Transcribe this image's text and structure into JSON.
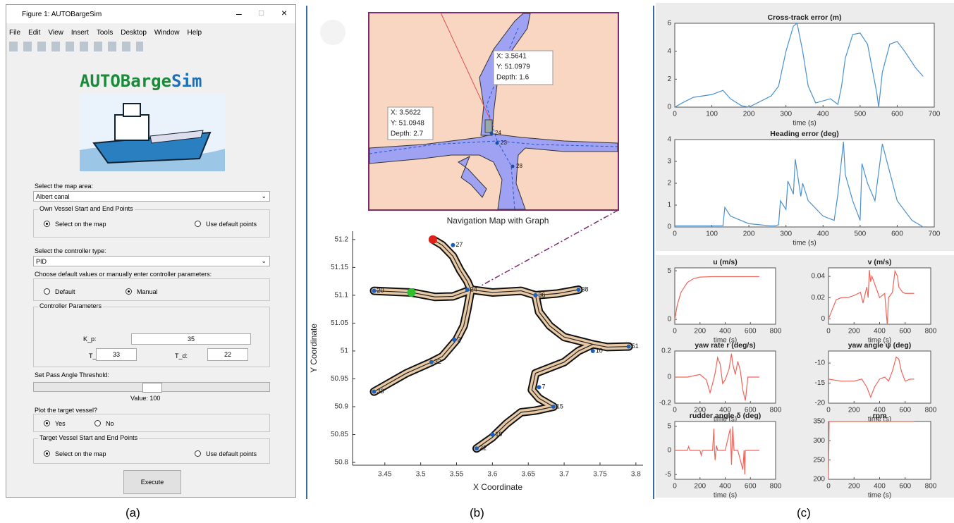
{
  "captions": [
    "(a)",
    "(b)",
    "(c)"
  ],
  "gui": {
    "window_title": "Figure 1: AUTOBargeSim",
    "menu": [
      "File",
      "Edit",
      "View",
      "Insert",
      "Tools",
      "Desktop",
      "Window",
      "Help"
    ],
    "logo_parts": [
      "AUTOBarge",
      "Sim"
    ],
    "map_area_label": "Select the map area:",
    "map_area_value": "Albert canal",
    "own_group": "Own Vessel Start and End Points",
    "own_options": [
      "Select on the map",
      "Use default points"
    ],
    "controller_label": "Select the controller type:",
    "controller_value": "PID",
    "param_mode_label": "Choose default values or manually enter controller parameters:",
    "param_mode_options": [
      "Default",
      "Manual"
    ],
    "params_group": "Controller Parameters",
    "kp_label": "K_p:",
    "kp_value": "35",
    "ti_label": "T_i:",
    "ti_value": "33",
    "td_label": "T_d:",
    "td_value": "22",
    "threshold_label": "Set Pass Angle Threshold:",
    "threshold_value": "Value: 100",
    "target_label": "Plot the target vessel?",
    "target_options": [
      "Yes",
      "No"
    ],
    "target_group": "Target Vessel Start and End Points",
    "target_points_options": [
      "Select on the map",
      "Use default points"
    ],
    "execute": "Execute"
  },
  "inset": {
    "tips": [
      {
        "lines": [
          "X: 3.5641",
          "Y: 51.0979",
          "Depth: 1.6"
        ]
      },
      {
        "lines": [
          "X: 3.5622",
          "Y: 51.0948",
          "Depth: 2.7"
        ]
      }
    ],
    "node_labels": [
      "24",
      "23",
      "28"
    ]
  },
  "map": {
    "type": "map",
    "title": "Navigation Map with Graph",
    "xlabel": "X Coordinate",
    "ylabel": "Y Coordinate",
    "xlim": [
      3.405,
      3.81
    ],
    "ylim": [
      50.795,
      51.215
    ],
    "xticks": [
      3.45,
      3.5,
      3.55,
      3.6,
      3.65,
      3.7,
      3.75,
      3.8
    ],
    "yticks": [
      50.8,
      50.85,
      50.9,
      50.95,
      51,
      51.05,
      51.1,
      51.15,
      51.2
    ],
    "rivers": [
      {
        "x": [
          3.517,
          3.53,
          3.545,
          3.555,
          3.565,
          3.57
        ],
        "y": [
          51.2,
          51.19,
          51.17,
          51.145,
          51.125,
          51.11
        ]
      },
      {
        "x": [
          3.435,
          3.487,
          3.52,
          3.545,
          3.57,
          3.6,
          3.64,
          3.66,
          3.69,
          3.72
        ],
        "y": [
          51.108,
          51.105,
          51.097,
          51.098,
          51.11,
          51.105,
          51.108,
          51.1,
          51.103,
          51.11
        ]
      },
      {
        "x": [
          3.66,
          3.665,
          3.68,
          3.7,
          3.74,
          3.76,
          3.79
        ],
        "y": [
          51.1,
          51.07,
          51.045,
          51.025,
          51.012,
          51.007,
          51.008
        ]
      },
      {
        "x": [
          3.74,
          3.72,
          3.7,
          3.66,
          3.655,
          3.665,
          3.685,
          3.66,
          3.64,
          3.62,
          3.6,
          3.578
        ],
        "y": [
          51.012,
          51.0,
          50.98,
          50.96,
          50.93,
          50.915,
          50.9,
          50.893,
          50.89,
          50.87,
          50.845,
          50.825
        ]
      },
      {
        "x": [
          3.57,
          3.565,
          3.56,
          3.55,
          3.53,
          3.515,
          3.48,
          3.435
        ],
        "y": [
          51.11,
          51.075,
          51.045,
          51.02,
          50.99,
          50.98,
          50.96,
          50.927
        ]
      }
    ],
    "nodes": [
      {
        "label": "20",
        "x": 3.435,
        "y": 51.108
      },
      {
        "label": "24",
        "x": 3.565,
        "y": 51.11
      },
      {
        "label": "36",
        "x": 3.66,
        "y": 51.1
      },
      {
        "label": "38",
        "x": 3.72,
        "y": 51.11
      },
      {
        "label": "51",
        "x": 3.79,
        "y": 51.008
      },
      {
        "label": "10",
        "x": 3.74,
        "y": 51.0
      },
      {
        "label": "7",
        "x": 3.665,
        "y": 50.935
      },
      {
        "label": "15",
        "x": 3.685,
        "y": 50.9
      },
      {
        "label": "19",
        "x": 3.6,
        "y": 50.85
      },
      {
        "label": "22",
        "x": 3.578,
        "y": 50.825
      },
      {
        "label": "32",
        "x": 3.515,
        "y": 50.98
      },
      {
        "label": "33",
        "x": 3.435,
        "y": 50.927
      },
      {
        "label": "2",
        "x": 3.547,
        "y": 51.02
      },
      {
        "label": "27",
        "x": 3.545,
        "y": 51.19
      }
    ],
    "start": {
      "x": 3.517,
      "y": 51.2,
      "color": "#e0201b"
    },
    "goal": {
      "x": 3.487,
      "y": 51.105,
      "color": "#2fbf2f"
    }
  },
  "plots": [
    {
      "type": "line",
      "title": "Cross-track error (m)",
      "xlabel": "time (s)",
      "color": "#4a90d0",
      "xlim": [
        0,
        700
      ],
      "ylim": [
        0,
        6
      ],
      "xticks": [
        0,
        100,
        200,
        300,
        400,
        500,
        600,
        700
      ],
      "yticks": [
        0,
        2,
        4,
        6
      ],
      "x": [
        0,
        20,
        50,
        100,
        130,
        150,
        180,
        200,
        260,
        280,
        300,
        320,
        330,
        345,
        360,
        380,
        420,
        440,
        450,
        460,
        480,
        500,
        520,
        545,
        550,
        560,
        580,
        600,
        620,
        650,
        670
      ],
      "values": [
        0,
        0.3,
        0.7,
        0.9,
        1.2,
        0.6,
        0.1,
        0,
        0.8,
        1.5,
        4.0,
        5.8,
        6,
        4,
        1.5,
        0.3,
        0.6,
        0.2,
        1.5,
        3.5,
        5.2,
        5.3,
        4.5,
        1.0,
        0,
        2.5,
        4.5,
        4.7,
        4.0,
        2.8,
        2.2
      ]
    },
    {
      "type": "line",
      "title": "Heading error (deg)",
      "xlabel": "time (s)",
      "color": "#4a90d0",
      "xlim": [
        0,
        700
      ],
      "ylim": [
        0,
        4
      ],
      "xticks": [
        0,
        100,
        200,
        300,
        400,
        500,
        600,
        700
      ],
      "yticks": [
        0,
        1,
        2,
        3,
        4
      ],
      "x": [
        0,
        50,
        100,
        130,
        135,
        150,
        200,
        260,
        270,
        280,
        285,
        300,
        305,
        320,
        325,
        340,
        345,
        360,
        400,
        430,
        440,
        445,
        455,
        460,
        480,
        500,
        505,
        520,
        540,
        560,
        600,
        640,
        670
      ],
      "values": [
        0.05,
        0.05,
        0.05,
        0.05,
        0.9,
        0.5,
        0.15,
        0.05,
        0.05,
        0.1,
        1.2,
        0.8,
        2.1,
        1.5,
        3.1,
        1.4,
        2.0,
        1.2,
        0.5,
        0.3,
        1.5,
        2.3,
        3.9,
        2.4,
        1.2,
        0.3,
        2.9,
        2.0,
        1.2,
        3.8,
        1.2,
        0.3,
        0.0
      ]
    },
    {
      "type": "line",
      "title": "u (m/s)",
      "xlabel": "time (s)",
      "color": "#f0645a",
      "xlim": [
        0,
        800
      ],
      "ylim": [
        -0.5,
        5.3
      ],
      "xticks": [
        0,
        200,
        400,
        600,
        800
      ],
      "yticks": [
        0,
        5
      ],
      "x": [
        0,
        20,
        50,
        100,
        150,
        200,
        300,
        400,
        500,
        600,
        670
      ],
      "values": [
        0,
        1.5,
        2.8,
        3.8,
        4.2,
        4.35,
        4.4,
        4.4,
        4.4,
        4.4,
        4.4
      ]
    },
    {
      "type": "line",
      "title": "v (m/s)",
      "xlabel": "time (s)",
      "color": "#f0645a",
      "xlim": [
        0,
        800
      ],
      "ylim": [
        -0.005,
        0.048
      ],
      "xticks": [
        0,
        200,
        400,
        600,
        800
      ],
      "yticks": [
        0,
        0.02,
        0.04
      ],
      "x": [
        0,
        40,
        60,
        100,
        150,
        200,
        250,
        270,
        300,
        310,
        320,
        330,
        340,
        400,
        440,
        450,
        460,
        470,
        500,
        520,
        540,
        550,
        580,
        600,
        670
      ],
      "values": [
        0,
        0.012,
        0.018,
        0.02,
        0.02,
        0.022,
        0.025,
        0.015,
        0.03,
        0.02,
        0.046,
        0.035,
        0.04,
        0.02,
        0.024,
        0.008,
        -0.005,
        0.02,
        0.025,
        0.045,
        0.04,
        0.03,
        0.025,
        0.024,
        0.024
      ]
    },
    {
      "type": "line",
      "title": "yaw rate r (deg/s)",
      "xlabel": "time (s)",
      "color": "#f0645a",
      "xlim": [
        0,
        800
      ],
      "ylim": [
        -0.2,
        0.2
      ],
      "xticks": [
        0,
        200,
        400,
        600,
        800
      ],
      "yticks": [
        -0.2,
        0,
        0.2
      ],
      "x": [
        0,
        100,
        200,
        250,
        280,
        300,
        320,
        340,
        360,
        380,
        400,
        430,
        450,
        460,
        480,
        500,
        520,
        540,
        560,
        580,
        600,
        670
      ],
      "values": [
        0,
        0,
        0.02,
        -0.02,
        -0.12,
        -0.05,
        0.03,
        0.15,
        0.1,
        -0.05,
        -0.02,
        0.06,
        0.18,
        0.1,
        0.02,
        0.12,
        0.05,
        -0.1,
        -0.18,
        0.0,
        0.0,
        0.0
      ]
    },
    {
      "type": "line",
      "title": "yaw angle ψ (deg)",
      "xlabel": "time (s)",
      "color": "#f0645a",
      "xlim": [
        0,
        800
      ],
      "ylim": [
        -20,
        -7
      ],
      "xticks": [
        0,
        200,
        400,
        600,
        800
      ],
      "yticks": [
        -20,
        -15,
        -10
      ],
      "x": [
        0,
        100,
        200,
        260,
        300,
        330,
        360,
        400,
        440,
        470,
        500,
        530,
        550,
        570,
        600,
        640,
        670
      ],
      "values": [
        -14,
        -14.5,
        -14.5,
        -14,
        -16,
        -18.5,
        -16,
        -14,
        -13.5,
        -14.5,
        -12,
        -8.5,
        -9,
        -12,
        -14.5,
        -14,
        -14
      ]
    },
    {
      "type": "line",
      "title": "rudder angle δ (deg)",
      "xlabel": "time (s)",
      "color": "#f0645a",
      "xlim": [
        0,
        800
      ],
      "ylim": [
        -6,
        6
      ],
      "xticks": [
        0,
        200,
        400,
        600,
        800
      ],
      "yticks": [
        -5,
        0,
        5
      ],
      "x": [
        0,
        100,
        110,
        120,
        200,
        210,
        220,
        300,
        310,
        315,
        320,
        330,
        340,
        400,
        440,
        450,
        455,
        460,
        470,
        500,
        540,
        550,
        555,
        560,
        600,
        670
      ],
      "values": [
        0,
        0,
        0.8,
        0,
        0,
        -1,
        0,
        0,
        4.5,
        0,
        -2,
        1,
        0,
        0,
        4.5,
        -3,
        1,
        5,
        0,
        0,
        -4,
        0,
        -5,
        0,
        0,
        0
      ]
    },
    {
      "type": "line",
      "title": "rpm",
      "xlabel": "time (s)",
      "color": "#f0645a",
      "xlim": [
        0,
        800
      ],
      "ylim": [
        200,
        350
      ],
      "xticks": [
        0,
        200,
        400,
        600,
        800
      ],
      "yticks": [
        200,
        250,
        300,
        350
      ],
      "x": [
        0,
        5,
        670
      ],
      "values": [
        200,
        350,
        350
      ]
    }
  ]
}
